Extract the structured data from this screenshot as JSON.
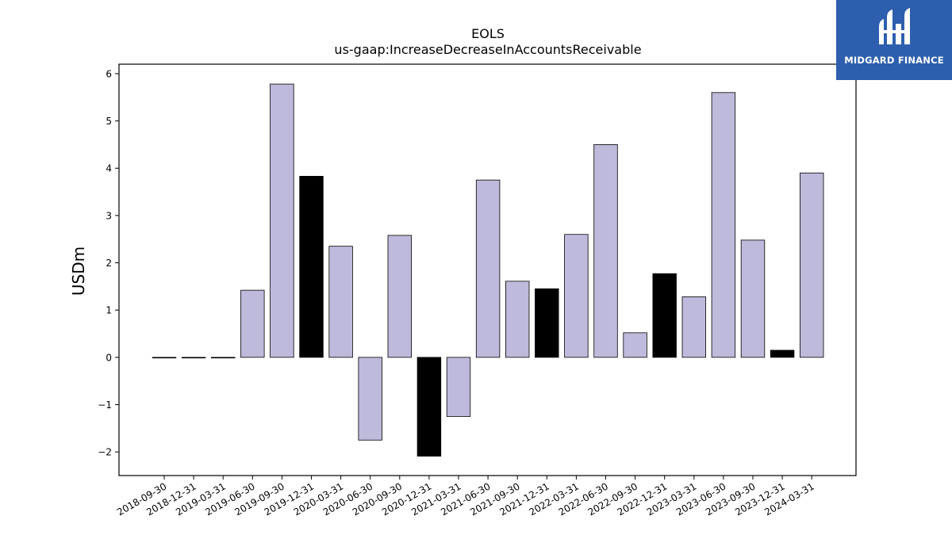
{
  "chart_data": {
    "type": "bar",
    "title": "EOLS",
    "subtitle": "us-gaap:IncreaseDecreaseInAccountsReceivable",
    "xlabel": "",
    "ylabel": "USDm",
    "ylim": [
      -2.5,
      6.2
    ],
    "yticks": [
      -2,
      -1,
      0,
      1,
      2,
      3,
      4,
      5,
      6
    ],
    "ytick_labels": [
      "−2",
      "−1",
      "0",
      "1",
      "2",
      "3",
      "4",
      "5",
      "6"
    ],
    "grid": false,
    "categories": [
      "2018-09-30",
      "2018-12-31",
      "2019-03-31",
      "2019-06-30",
      "2019-09-30",
      "2019-12-31",
      "2020-03-31",
      "2020-06-30",
      "2020-09-30",
      "2020-12-31",
      "2021-03-31",
      "2021-06-30",
      "2021-09-30",
      "2021-12-31",
      "2022-03-31",
      "2022-06-30",
      "2022-09-30",
      "2022-12-31",
      "2023-03-31",
      "2023-06-30",
      "2023-09-30",
      "2023-12-31",
      "2024-03-31"
    ],
    "values": [
      0,
      0,
      0,
      1.42,
      5.78,
      3.83,
      2.35,
      -1.75,
      2.58,
      -2.09,
      -1.25,
      3.75,
      1.61,
      1.45,
      2.6,
      4.5,
      0.52,
      1.77,
      1.28,
      5.6,
      2.48,
      0.15,
      3.9
    ],
    "highlight": [
      false,
      false,
      false,
      false,
      false,
      true,
      false,
      false,
      false,
      true,
      false,
      false,
      false,
      true,
      false,
      false,
      false,
      true,
      false,
      false,
      false,
      true,
      false
    ],
    "colors": {
      "bar": "#bebadb",
      "highlight": "#000000",
      "edge": "#000000"
    }
  },
  "logo": {
    "text": "MIDGARD FINANCE",
    "background": "#2d5fae"
  }
}
